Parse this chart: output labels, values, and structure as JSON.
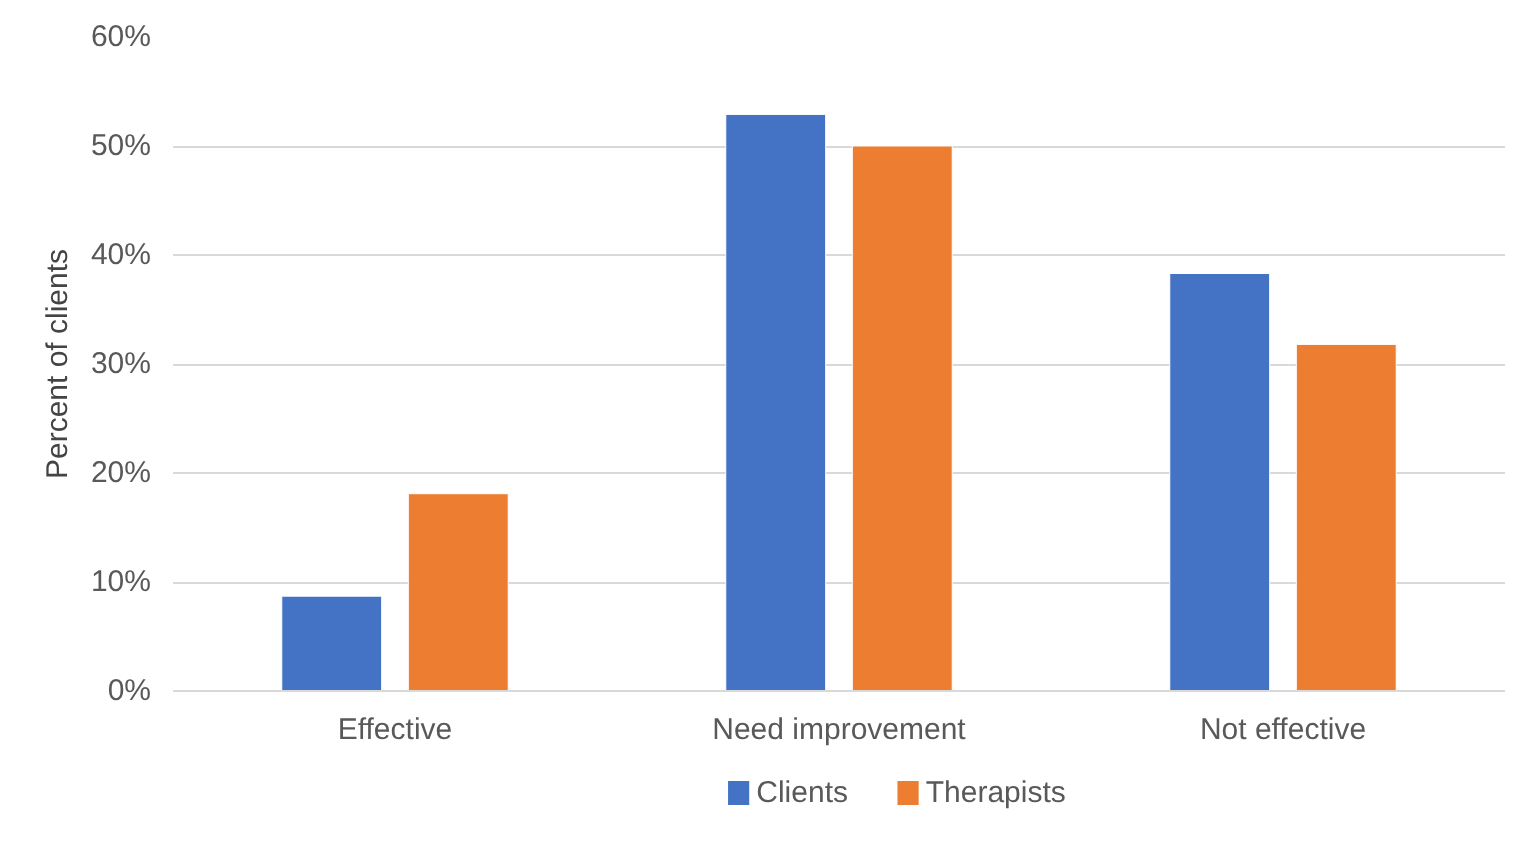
{
  "chart_data": {
    "type": "bar",
    "ylabel": "Percent of clients",
    "categories": [
      "Effective",
      "Need improvement",
      "Not effective"
    ],
    "series": [
      {
        "name": "Clients",
        "color": "#4472c4",
        "values": [
          8.7,
          52.9,
          38.3
        ]
      },
      {
        "name": "Therapists",
        "color": "#ed7d31",
        "values": [
          18.1,
          50.0,
          31.8
        ]
      }
    ],
    "ylim": [
      0,
      60
    ],
    "yticks": [
      {
        "value": 0,
        "label": "0%"
      },
      {
        "value": 10,
        "label": "10%"
      },
      {
        "value": 20,
        "label": "20%"
      },
      {
        "value": 30,
        "label": "30%"
      },
      {
        "value": 40,
        "label": "40%"
      },
      {
        "value": 50,
        "label": "50%"
      },
      {
        "value": 60,
        "label": "60%"
      }
    ],
    "grid": "y",
    "legend": "bottom"
  }
}
